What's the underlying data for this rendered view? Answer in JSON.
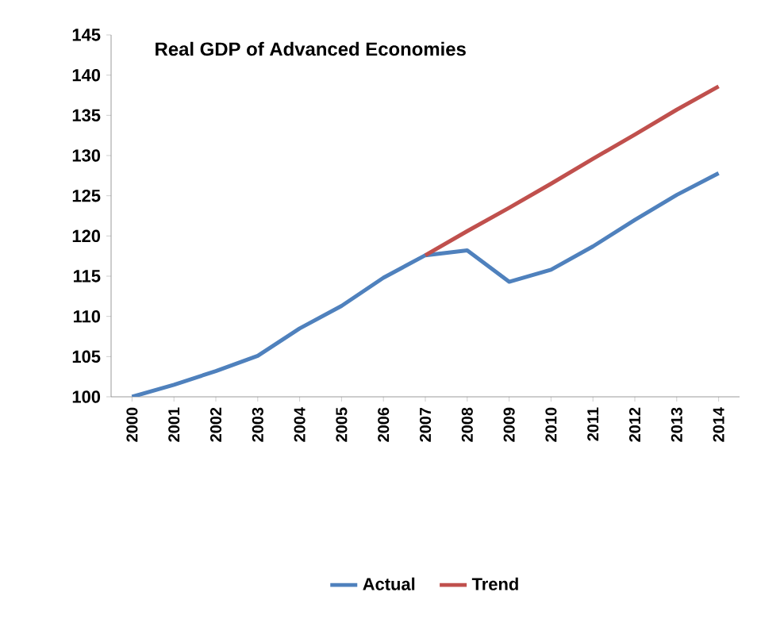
{
  "chart_data": {
    "type": "line",
    "title": "Real GDP of Advanced Economies",
    "categories": [
      "2000",
      "2001",
      "2002",
      "2003",
      "2004",
      "2005",
      "2006",
      "2007",
      "2008",
      "2009",
      "2010",
      "2011",
      "2012",
      "2013",
      "2014"
    ],
    "series": [
      {
        "name": "Actual",
        "color": "#4f81bd",
        "values": [
          100,
          101.5,
          103.2,
          105.1,
          108.5,
          111.3,
          114.8,
          117.6,
          118.2,
          114.3,
          115.8,
          118.7,
          122,
          125.1,
          127.8
        ]
      },
      {
        "name": "Trend",
        "color": "#c0504d",
        "values": [
          null,
          null,
          null,
          null,
          null,
          null,
          null,
          117.6,
          120.6,
          123.5,
          126.5,
          129.6,
          132.6,
          135.7,
          138.6
        ]
      }
    ],
    "ylim": [
      100,
      145
    ],
    "yticks": [
      100,
      105,
      110,
      115,
      120,
      125,
      130,
      135,
      140,
      145
    ],
    "legend": "bottom",
    "grid": false,
    "marker": "none",
    "line_style": "solid"
  }
}
